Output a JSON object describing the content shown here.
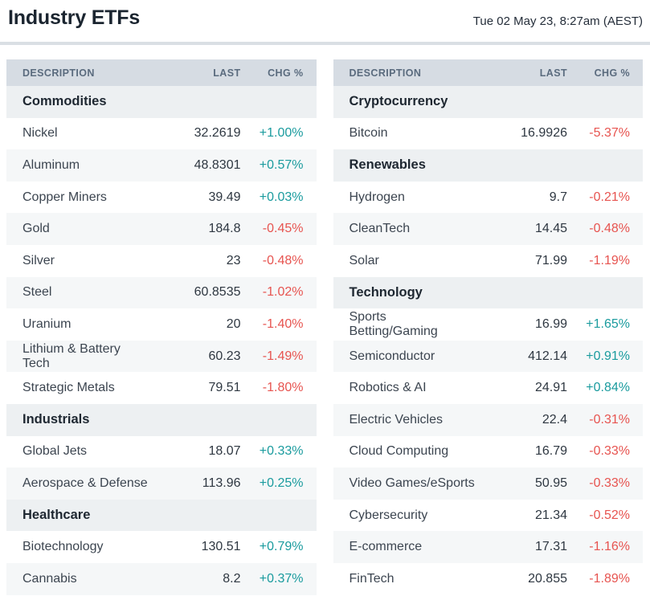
{
  "page": {
    "title": "Industry ETFs",
    "timestamp": "Tue 02 May 23, 8:27am (AEST)"
  },
  "columns": {
    "description": "DESCRIPTION",
    "last": "LAST",
    "chg": "CHG %"
  },
  "colors": {
    "positive": "#1a9b9e",
    "negative": "#e75450",
    "header_band": "#d6dce3",
    "section_band": "#edf0f2",
    "row_stripe": "#f5f7f8",
    "divider": "#dadfe4",
    "title_text": "#1b2530",
    "column_header_text": "#5a6b7e",
    "body_text": "#353e48"
  },
  "tables": [
    {
      "name": "left",
      "sections": [
        {
          "name": "Commodities",
          "rows": [
            {
              "description": "Nickel",
              "last": "32.2619",
              "chg": "+1.00%",
              "direction": "up"
            },
            {
              "description": "Aluminum",
              "last": "48.8301",
              "chg": "+0.57%",
              "direction": "up"
            },
            {
              "description": "Copper Miners",
              "last": "39.49",
              "chg": "+0.03%",
              "direction": "up"
            },
            {
              "description": "Gold",
              "last": "184.8",
              "chg": "-0.45%",
              "direction": "down"
            },
            {
              "description": "Silver",
              "last": "23",
              "chg": "-0.48%",
              "direction": "down"
            },
            {
              "description": "Steel",
              "last": "60.8535",
              "chg": "-1.02%",
              "direction": "down"
            },
            {
              "description": "Uranium",
              "last": "20",
              "chg": "-1.40%",
              "direction": "down"
            },
            {
              "description": "Lithium & Battery Tech",
              "last": "60.23",
              "chg": "-1.49%",
              "direction": "down"
            },
            {
              "description": "Strategic Metals",
              "last": "79.51",
              "chg": "-1.80%",
              "direction": "down"
            }
          ]
        },
        {
          "name": "Industrials",
          "rows": [
            {
              "description": "Global Jets",
              "last": "18.07",
              "chg": "+0.33%",
              "direction": "up"
            },
            {
              "description": "Aerospace & Defense",
              "last": "113.96",
              "chg": "+0.25%",
              "direction": "up"
            }
          ]
        },
        {
          "name": "Healthcare",
          "rows": [
            {
              "description": "Biotechnology",
              "last": "130.51",
              "chg": "+0.79%",
              "direction": "up"
            },
            {
              "description": "Cannabis",
              "last": "8.2",
              "chg": "+0.37%",
              "direction": "up"
            }
          ]
        }
      ]
    },
    {
      "name": "right",
      "sections": [
        {
          "name": "Cryptocurrency",
          "rows": [
            {
              "description": "Bitcoin",
              "last": "16.9926",
              "chg": "-5.37%",
              "direction": "down"
            }
          ]
        },
        {
          "name": "Renewables",
          "rows": [
            {
              "description": "Hydrogen",
              "last": "9.7",
              "chg": "-0.21%",
              "direction": "down"
            },
            {
              "description": "CleanTech",
              "last": "14.45",
              "chg": "-0.48%",
              "direction": "down"
            },
            {
              "description": "Solar",
              "last": "71.99",
              "chg": "-1.19%",
              "direction": "down"
            }
          ]
        },
        {
          "name": "Technology",
          "rows": [
            {
              "description": "Sports Betting/Gaming",
              "last": "16.99",
              "chg": "+1.65%",
              "direction": "up"
            },
            {
              "description": "Semiconductor",
              "last": "412.14",
              "chg": "+0.91%",
              "direction": "up"
            },
            {
              "description": "Robotics & AI",
              "last": "24.91",
              "chg": "+0.84%",
              "direction": "up"
            },
            {
              "description": "Electric Vehicles",
              "last": "22.4",
              "chg": "-0.31%",
              "direction": "down"
            },
            {
              "description": "Cloud Computing",
              "last": "16.79",
              "chg": "-0.33%",
              "direction": "down"
            },
            {
              "description": "Video Games/eSports",
              "last": "50.95",
              "chg": "-0.33%",
              "direction": "down"
            },
            {
              "description": "Cybersecurity",
              "last": "21.34",
              "chg": "-0.52%",
              "direction": "down"
            },
            {
              "description": "E-commerce",
              "last": "17.31",
              "chg": "-1.16%",
              "direction": "down"
            },
            {
              "description": "FinTech",
              "last": "20.855",
              "chg": "-1.89%",
              "direction": "down"
            }
          ]
        }
      ]
    }
  ]
}
